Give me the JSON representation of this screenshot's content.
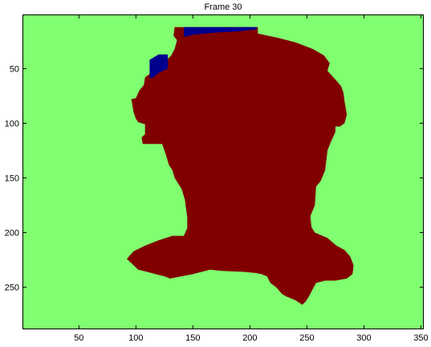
{
  "chart_data": {
    "type": "heatmap",
    "title": "Frame 30",
    "xlabel": "",
    "ylabel": "",
    "xlim": [
      0.5,
      352.5
    ],
    "ylim": [
      0.5,
      288.5
    ],
    "y_reversed": true,
    "xticks": [
      50,
      100,
      150,
      200,
      250,
      300,
      350
    ],
    "yticks": [
      50,
      100,
      150,
      200,
      250
    ],
    "grid": false,
    "colors": {
      "background": "#80ff70",
      "region": "#800000",
      "blob": "#00008f"
    },
    "region_outline": [
      [
        140,
        12
      ],
      [
        207,
        12
      ],
      [
        207,
        18
      ],
      [
        225,
        22
      ],
      [
        240,
        26
      ],
      [
        255,
        32
      ],
      [
        265,
        38
      ],
      [
        270,
        45
      ],
      [
        268,
        52
      ],
      [
        275,
        60
      ],
      [
        280,
        66
      ],
      [
        282,
        72
      ],
      [
        283,
        80
      ],
      [
        285,
        92
      ],
      [
        283,
        100
      ],
      [
        279,
        103
      ],
      [
        275,
        103
      ],
      [
        275,
        108
      ],
      [
        271,
        117
      ],
      [
        268,
        125
      ],
      [
        266,
        143
      ],
      [
        262,
        153
      ],
      [
        258,
        158
      ],
      [
        257,
        175
      ],
      [
        253,
        185
      ],
      [
        254,
        195
      ],
      [
        257,
        200
      ],
      [
        268,
        205
      ],
      [
        276,
        212
      ],
      [
        283,
        216
      ],
      [
        288,
        222
      ],
      [
        291,
        230
      ],
      [
        290,
        238
      ],
      [
        285,
        242
      ],
      [
        275,
        244
      ],
      [
        266,
        244
      ],
      [
        258,
        246
      ],
      [
        255,
        252
      ],
      [
        252,
        258
      ],
      [
        249,
        263
      ],
      [
        246,
        266
      ],
      [
        240,
        262
      ],
      [
        231,
        258
      ],
      [
        228,
        256
      ],
      [
        223,
        250
      ],
      [
        218,
        246
      ],
      [
        215,
        240
      ],
      [
        210,
        238
      ],
      [
        205,
        237
      ],
      [
        195,
        236
      ],
      [
        175,
        235
      ],
      [
        165,
        234
      ],
      [
        150,
        238
      ],
      [
        140,
        240
      ],
      [
        130,
        242
      ],
      [
        125,
        240
      ],
      [
        117,
        238
      ],
      [
        110,
        236
      ],
      [
        102,
        234
      ],
      [
        97,
        229
      ],
      [
        92,
        224
      ],
      [
        98,
        217
      ],
      [
        108,
        212
      ],
      [
        120,
        207
      ],
      [
        132,
        203
      ],
      [
        142,
        203
      ],
      [
        145,
        196
      ],
      [
        145,
        186
      ],
      [
        144,
        178
      ],
      [
        143,
        170
      ],
      [
        140,
        160
      ],
      [
        137,
        155
      ],
      [
        134,
        150
      ],
      [
        132,
        143
      ],
      [
        129,
        138
      ],
      [
        126,
        128
      ],
      [
        123,
        119
      ],
      [
        118,
        119
      ],
      [
        106,
        119
      ],
      [
        105,
        113
      ],
      [
        108,
        110
      ],
      [
        108,
        101
      ],
      [
        102,
        99
      ],
      [
        100,
        96
      ],
      [
        98,
        90
      ],
      [
        96,
        78
      ],
      [
        100,
        77
      ],
      [
        103,
        70
      ],
      [
        107,
        65
      ],
      [
        108,
        58
      ],
      [
        112,
        55
      ],
      [
        120,
        52
      ],
      [
        126,
        48
      ],
      [
        127,
        42
      ],
      [
        131,
        38
      ],
      [
        134,
        32
      ],
      [
        136,
        24
      ],
      [
        133,
        20
      ],
      [
        134,
        12
      ]
    ],
    "blobs": [
      [
        [
          142,
          12
        ],
        [
          206,
          12
        ],
        [
          206,
          14
        ],
        [
          190,
          16
        ],
        [
          170,
          17
        ],
        [
          150,
          19
        ],
        [
          142,
          21
        ]
      ],
      [
        [
          112,
          42
        ],
        [
          120,
          37
        ],
        [
          128,
          37
        ],
        [
          128,
          50
        ],
        [
          120,
          54
        ],
        [
          114,
          59
        ],
        [
          112,
          58
        ]
      ]
    ]
  }
}
